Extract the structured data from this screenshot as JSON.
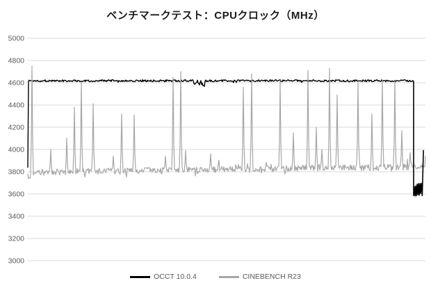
{
  "chart_data": {
    "type": "line",
    "title": "ベンチマークテスト：CPUクロック（MHz）",
    "xlabel": "",
    "ylabel": "",
    "ylim": [
      3000,
      5000
    ],
    "y_axis": {
      "min": 3000,
      "max": 5000,
      "tick_step": 200,
      "ticks": [
        5000,
        4800,
        4600,
        4400,
        4200,
        4000,
        3800,
        3600,
        3400,
        3200,
        3000
      ]
    },
    "x_axis": {
      "ticks_visible": false
    },
    "grid": true,
    "legend": {
      "position": "bottom"
    },
    "colors": {
      "background": "#ffffff",
      "gridline": "#d9d9d9",
      "axis_label": "#595959",
      "title": "#1a1a1a",
      "legend_text": "#595959"
    },
    "series": [
      {
        "name": "OCCT 10.0.4",
        "color": "#000000",
        "summary": "Flat plateau near 4618 MHz across the whole run with ±9 MHz jitter, minor dips (~4575 MHz) around 42-45% of the run, then a sharp drop at ~97% to a noisy 3575-3700 MHz block, ending with a final spike to ~3990 MHz.",
        "behavior": {
          "start_value": 3840,
          "plateau_value": 4618,
          "plateau_noise": 9,
          "dip_zone": {
            "from_pct": 41.5,
            "to_pct": 44.8,
            "dip_min": 4572
          },
          "drop_pct": 97.0,
          "end_block": {
            "from_pct": 97.0,
            "to_pct": 99.0,
            "low": 3575,
            "high": 3700
          },
          "end_points_pct_value": [
            [
              99.2,
              3585
            ],
            [
              99.5,
              3990
            ]
          ]
        }
      },
      {
        "name": "CINEBENCH R23",
        "color": "#a6a6a6",
        "summary": "Noisy baseline drifting from ~3795 up to ~3845 MHz (±30 MHz), an initial spike to 4750 MHz followed by a dip to ~3680 MHz, and periodic tall single-sample boost spikes between ~3940 and ~4730 MHz.",
        "behavior": {
          "start_value": 3780,
          "baseline_start": 3795,
          "baseline_end": 3845,
          "noise": 28,
          "burst_chance": 0.1,
          "burst_scale": 95,
          "start_dip": {
            "until_pct": 2.0,
            "depth": 110
          },
          "end_value": 3940,
          "spikes_pct_value": [
            [
              1.0,
              4750
            ],
            [
              5.8,
              4000
            ],
            [
              9.8,
              4100
            ],
            [
              11.7,
              4380
            ],
            [
              13.5,
              4600
            ],
            [
              16.4,
              4410
            ],
            [
              21.5,
              3940
            ],
            [
              23.6,
              4320
            ],
            [
              26.7,
              4310
            ],
            [
              34.6,
              3940
            ],
            [
              36.5,
              4650
            ],
            [
              38.5,
              4700
            ],
            [
              39.7,
              3990
            ],
            [
              46.0,
              3960
            ],
            [
              54.2,
              4560
            ],
            [
              56.3,
              4680
            ],
            [
              63.5,
              4620
            ],
            [
              66.8,
              4150
            ],
            [
              70.5,
              4710
            ],
            [
              72.6,
              4200
            ],
            [
              74.0,
              4000
            ],
            [
              75.9,
              4730
            ],
            [
              77.8,
              4490
            ],
            [
              83.0,
              4600
            ],
            [
              86.5,
              4320
            ],
            [
              89.2,
              4620
            ],
            [
              92.3,
              4620
            ],
            [
              94.1,
              4170
            ],
            [
              96.2,
              3970
            ]
          ]
        }
      }
    ]
  }
}
